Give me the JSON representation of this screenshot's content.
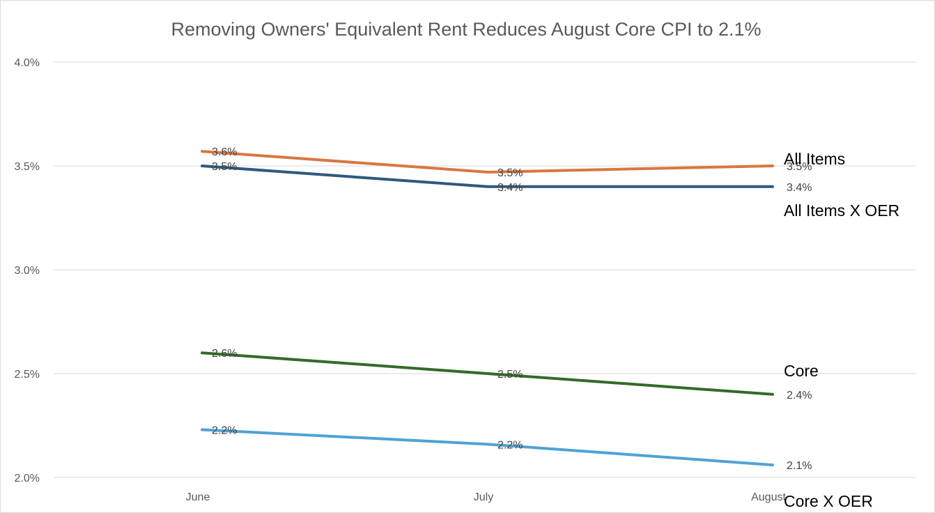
{
  "chart_data": {
    "type": "line",
    "title": "Removing Owners' Equivalent Rent Reduces August Core CPI to 2.1%",
    "categories": [
      "June",
      "July",
      "August"
    ],
    "ylim": [
      2.0,
      4.0
    ],
    "y_ticks": [
      "2.0%",
      "2.5%",
      "3.0%",
      "3.5%",
      "4.0%"
    ],
    "grid": "horizontal",
    "legend": "inline series labels at right end",
    "series": [
      {
        "name": "All Items",
        "values": [
          3.57,
          3.47,
          3.5
        ],
        "labels": [
          "3.6%",
          "3.5%",
          "3.5%"
        ],
        "color": "#d9773f"
      },
      {
        "name": "All Items X OER",
        "values": [
          3.5,
          3.4,
          3.4
        ],
        "labels": [
          "3.5%",
          "3.4%",
          "3.4%"
        ],
        "color": "#2e5a7c"
      },
      {
        "name": "Core",
        "values": [
          2.6,
          2.5,
          2.4
        ],
        "labels": [
          "2.6%",
          "2.5%",
          "2.4%"
        ],
        "color": "#336b28"
      },
      {
        "name": "Core X OER",
        "values": [
          2.23,
          2.16,
          2.06
        ],
        "labels": [
          "2.2%",
          "2.2%",
          "2.1%"
        ],
        "color": "#4ea3d5"
      }
    ]
  }
}
